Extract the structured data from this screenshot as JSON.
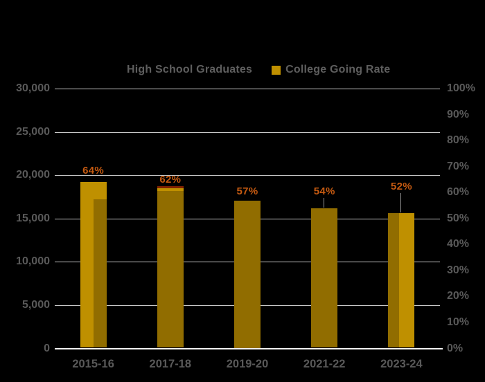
{
  "background": "#000000",
  "legend": {
    "items": [
      {
        "label": "High School Graduates",
        "swatch_color": "#000000"
      },
      {
        "label": "College Going Rate",
        "swatch_color": "#BF9000"
      }
    ]
  },
  "chart_data": {
    "type": "bar",
    "title": "",
    "categories": [
      "2015-16",
      "2017-18",
      "2019-20",
      "2021-22",
      "2023-24"
    ],
    "series": [
      {
        "name": "High School Graduates",
        "axis": "left",
        "color": "#000000",
        "values_estimated": [
          17200,
          18200,
          17100,
          16200,
          15600
        ]
      },
      {
        "name": "College Going Rate",
        "axis": "right",
        "color": "#BF9000",
        "values_percent": [
          64,
          62,
          57,
          54,
          52
        ],
        "data_labels": [
          "64%",
          "62%",
          "57%",
          "54%",
          "52%"
        ]
      }
    ],
    "left_axis": {
      "range": [
        0,
        30000
      ],
      "tick_interval": 5000,
      "ticks": [
        "30,000",
        "25,000",
        "20,000",
        "15,000",
        "10,000",
        "5,000",
        "0"
      ]
    },
    "right_axis": {
      "range_percent": [
        0,
        100
      ],
      "tick_interval_percent": 10,
      "ticks": [
        "100%",
        "90%",
        "80%",
        "70%",
        "60%",
        "50%",
        "40%",
        "30%",
        "20%",
        "10%",
        "0%"
      ]
    },
    "grid": "horizontal-major-left-axis",
    "legend_position": "top",
    "colors": {
      "bar_gold": "#BF9000",
      "bar_shade": "rgba(0,0,0,0.24)",
      "label_orange": "#C55A11",
      "bar2_cap_maroon": "#7F2100",
      "gridline": "#D9D9D9",
      "axis_line": "#F2F2F2",
      "text_gray": "#595959",
      "background": "#000000"
    },
    "render_hints": {
      "bar_shades": [
        {
          "mode": "right",
          "frac": 0.5,
          "from": 17200
        },
        {
          "mode": "full",
          "frac": 1.0,
          "from": 18200,
          "cap": true
        },
        {
          "mode": "full",
          "frac": 1.0,
          "from": 17100
        },
        {
          "mode": "full",
          "frac": 1.0,
          "from": 16200
        },
        {
          "mode": "left",
          "frac": 0.4,
          "from": 15600
        }
      ],
      "label_gaps": [
        8,
        3,
        5,
        16,
        30
      ],
      "leader_lines": [
        false,
        false,
        false,
        true,
        true
      ]
    }
  }
}
